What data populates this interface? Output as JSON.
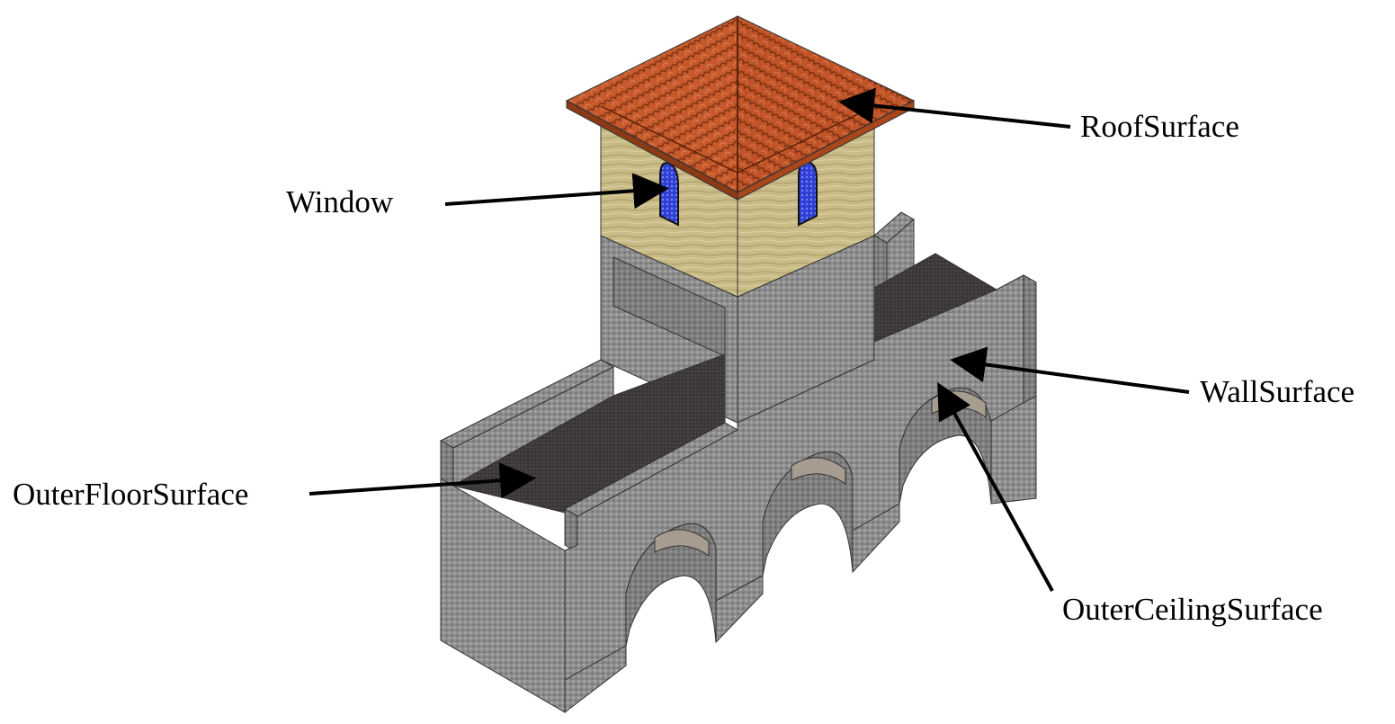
{
  "labels": {
    "roof": "RoofSurface",
    "window": "Window",
    "wall": "WallSurface",
    "outer_floor": "OuterFloorSurface",
    "outer_ceiling": "OuterCeilingSurface"
  },
  "colors": {
    "stone": "#8e8e8e",
    "stone_dark": "#6e6e6e",
    "floor": "#3d383a",
    "roof_tile": "#c8582a",
    "roof_tile_dark": "#8c3a16",
    "tower_wall": "#c8bb86",
    "window_glass": "#2d3ccf",
    "arrow": "#000000"
  }
}
